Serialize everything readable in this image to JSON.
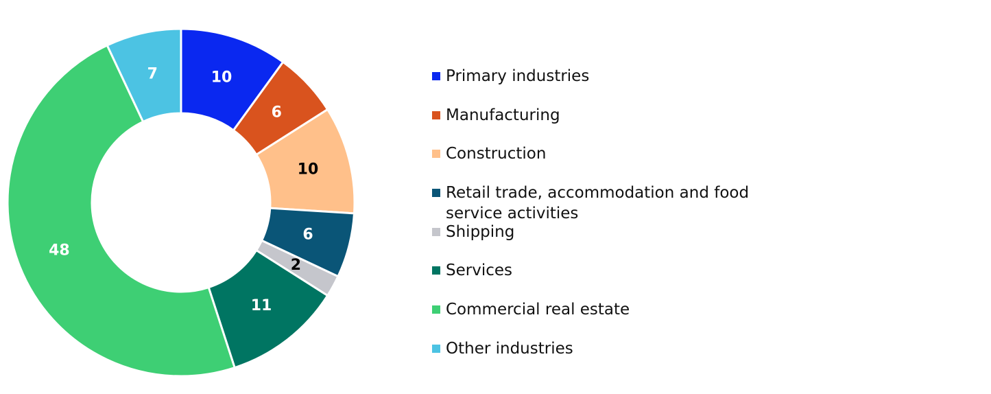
{
  "chart_data": {
    "type": "pie",
    "categories": [
      "Primary industries",
      "Manufacturing",
      "Construction",
      "Retail trade, accommodation and food service activities",
      "Shipping",
      "Services",
      "Commercial real estate",
      "Other industries"
    ],
    "values": [
      10,
      6,
      10,
      6,
      2,
      11,
      48,
      7
    ],
    "colors": [
      "#0a28f0",
      "#d9531e",
      "#ffc08a",
      "#0a5577",
      "#c5c6cc",
      "#007562",
      "#3ecf74",
      "#4cc3e3"
    ],
    "label_colors": [
      "#ffffff",
      "#ffffff",
      "#000000",
      "#ffffff",
      "#000000",
      "#ffffff",
      "#ffffff",
      "#ffffff"
    ],
    "legend": "right"
  }
}
